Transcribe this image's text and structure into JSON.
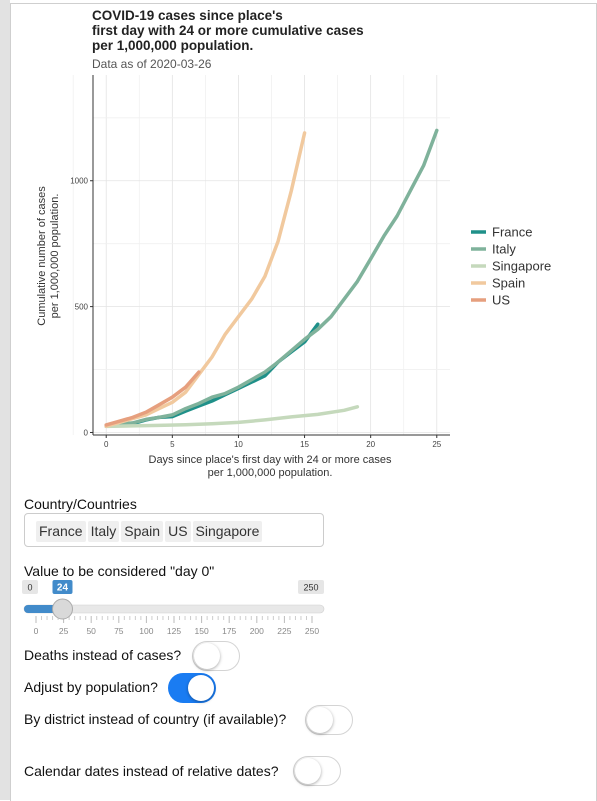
{
  "chart_data": {
    "type": "line",
    "title": "COVID-19 cases since place's\nfirst day with 24 or more cumulative cases\nper 1,000,000 population.",
    "subtitle": "Data as of 2020-03-26",
    "xlabel": "Days since place's first day with 24 or more cases\nper 1,000,000 population.",
    "ylabel": "Cumulative number of cases\nper 1,000,000 population.",
    "xlim": [
      -1,
      26
    ],
    "ylim": [
      -10,
      1420
    ],
    "xticks": [
      0,
      5,
      10,
      15,
      20,
      25
    ],
    "yticks": [
      0,
      500,
      1000
    ],
    "grid": true,
    "legend_position": "right",
    "series": [
      {
        "name": "France",
        "color": "#1f9089",
        "x": [
          0,
          1,
          2,
          3,
          4,
          5,
          6,
          7,
          8,
          9,
          10,
          11,
          12,
          13,
          14,
          15,
          16
        ],
        "y": [
          25,
          30,
          35,
          50,
          60,
          63,
          85,
          105,
          125,
          150,
          175,
          200,
          225,
          280,
          320,
          360,
          430
        ]
      },
      {
        "name": "Italy",
        "color": "#7fb29b",
        "x": [
          0,
          1,
          2,
          3,
          4,
          5,
          6,
          7,
          8,
          9,
          10,
          11,
          12,
          13,
          14,
          15,
          16,
          17,
          18,
          19,
          20,
          21,
          22,
          23,
          24,
          25
        ],
        "y": [
          28,
          32,
          38,
          52,
          60,
          70,
          95,
          115,
          140,
          155,
          180,
          210,
          240,
          280,
          325,
          370,
          410,
          460,
          530,
          600,
          690,
          780,
          860,
          960,
          1060,
          1200
        ]
      },
      {
        "name": "Singapore",
        "color": "#c5d9bc",
        "x": [
          0,
          2,
          4,
          6,
          8,
          10,
          12,
          14,
          16,
          18,
          19
        ],
        "y": [
          24,
          26,
          28,
          31,
          35,
          40,
          50,
          62,
          72,
          88,
          102
        ]
      },
      {
        "name": "Spain",
        "color": "#f1c99e",
        "x": [
          0,
          1,
          2,
          3,
          4,
          5,
          6,
          7,
          8,
          9,
          10,
          11,
          12,
          13,
          14,
          15
        ],
        "y": [
          25,
          40,
          55,
          70,
          95,
          120,
          160,
          230,
          300,
          390,
          460,
          530,
          620,
          760,
          960,
          1190
        ]
      },
      {
        "name": "US",
        "color": "#e69f7e",
        "x": [
          0,
          1,
          2,
          3,
          4,
          5,
          6,
          7
        ],
        "y": [
          30,
          45,
          60,
          80,
          110,
          140,
          180,
          240
        ]
      }
    ]
  },
  "controls": {
    "countries_label": "Country/Countries",
    "countries": [
      "France",
      "Italy",
      "Spain",
      "US",
      "Singapore"
    ],
    "day0_label": "Value to be considered \"day 0\"",
    "slider": {
      "min": 0,
      "max": 250,
      "value": 24,
      "tick_labels": [
        "0",
        "25",
        "50",
        "75",
        "100",
        "125",
        "150",
        "175",
        "200",
        "225",
        "250"
      ]
    },
    "deaths_label": "Deaths instead of cases?",
    "deaths_on": false,
    "adjust_label": "Adjust by population?",
    "adjust_on": true,
    "district_label": "By district instead of country (if available)?",
    "district_on": false,
    "calendar_label": "Calendar dates instead of relative dates?",
    "calendar_on": false
  }
}
